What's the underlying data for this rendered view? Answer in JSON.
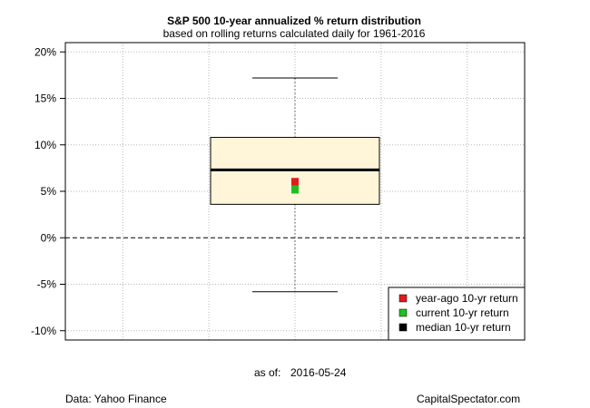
{
  "chart_data": {
    "type": "boxplot",
    "title": "S&P 500 10-year annualized % return distribution",
    "subtitle": "based on rolling returns calculated daily for 1961-2016",
    "ylim": [
      -11,
      21
    ],
    "yticks": [
      -10,
      -5,
      0,
      5,
      10,
      15,
      20
    ],
    "ytick_labels": [
      "-10%",
      "-5%",
      "0%",
      "5%",
      "10%",
      "15%",
      "20%"
    ],
    "grid": true,
    "box": {
      "whisker_low": -5.8,
      "q1": 3.6,
      "median": 7.3,
      "q3": 10.8,
      "whisker_high": 17.2
    },
    "markers": [
      {
        "name": "year-ago 10-yr return",
        "value": 6.0,
        "color": "#e31a1c"
      },
      {
        "name": "current 10-yr return",
        "value": 5.2,
        "color": "#1fbf1f"
      },
      {
        "name": "median 10-yr return",
        "value": 7.3,
        "color": "#000000"
      }
    ],
    "reference_line": 0,
    "legend_position": "bottom-right",
    "box_fill": "#fff5d9"
  },
  "footer": {
    "as_of_label": "as of:",
    "as_of_date": "2016-05-24",
    "source": "Data: Yahoo Finance",
    "brand": "CapitalSpectator.com"
  }
}
